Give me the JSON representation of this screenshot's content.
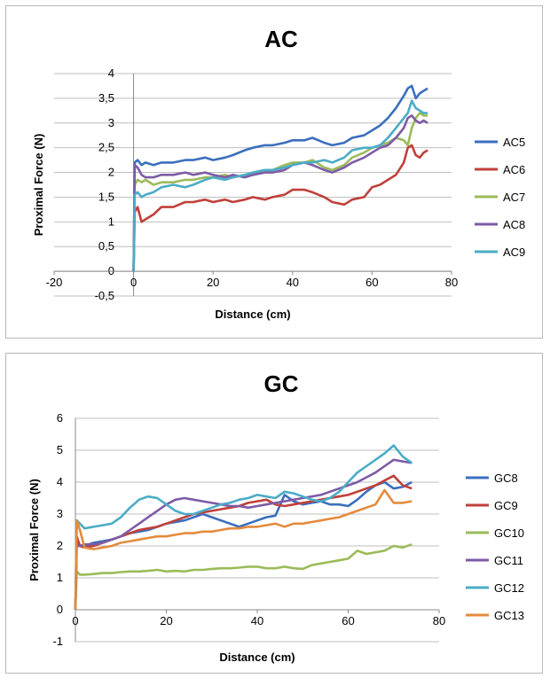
{
  "chart_data": [
    {
      "type": "line",
      "title": "AC",
      "xlabel": "Distance (cm)",
      "ylabel": "Proximal Force (N)",
      "xlim": [
        -20,
        80
      ],
      "ylim": [
        -0.5,
        4
      ],
      "xticks": [
        "-20",
        "0",
        "20",
        "40",
        "60",
        "80"
      ],
      "yticks": [
        "-0,5",
        "0",
        "0,5",
        "1",
        "1,5",
        "2",
        "2,5",
        "3",
        "3,5",
        "4"
      ],
      "grid": "horizontal",
      "legend": "right",
      "series": [
        {
          "name": "AC5",
          "color": "#3b6fbd",
          "x": [
            0,
            0.3,
            1,
            2,
            3,
            5,
            7,
            10,
            13,
            15,
            18,
            20,
            23,
            25,
            28,
            30,
            33,
            35,
            38,
            40,
            43,
            45,
            48,
            50,
            53,
            55,
            58,
            60,
            62,
            64,
            66,
            68,
            69,
            70,
            71,
            72,
            73,
            74
          ],
          "y": [
            0,
            2.2,
            2.25,
            2.15,
            2.2,
            2.15,
            2.2,
            2.2,
            2.25,
            2.25,
            2.3,
            2.25,
            2.3,
            2.35,
            2.45,
            2.5,
            2.55,
            2.55,
            2.6,
            2.65,
            2.65,
            2.7,
            2.6,
            2.55,
            2.6,
            2.7,
            2.75,
            2.85,
            2.95,
            3.1,
            3.3,
            3.55,
            3.7,
            3.75,
            3.5,
            3.6,
            3.65,
            3.7
          ]
        },
        {
          "name": "AC6",
          "color": "#c0403a",
          "x": [
            0,
            0.3,
            1,
            2,
            3,
            5,
            7,
            10,
            13,
            15,
            18,
            20,
            23,
            25,
            28,
            30,
            33,
            35,
            38,
            40,
            43,
            45,
            48,
            50,
            53,
            55,
            58,
            60,
            62,
            64,
            66,
            68,
            69,
            70,
            71,
            72,
            73,
            74
          ],
          "y": [
            0,
            1.2,
            1.3,
            1.0,
            1.05,
            1.15,
            1.3,
            1.3,
            1.4,
            1.4,
            1.45,
            1.4,
            1.45,
            1.4,
            1.45,
            1.5,
            1.45,
            1.5,
            1.55,
            1.65,
            1.65,
            1.6,
            1.5,
            1.4,
            1.35,
            1.45,
            1.5,
            1.7,
            1.75,
            1.85,
            1.95,
            2.2,
            2.5,
            2.55,
            2.35,
            2.3,
            2.4,
            2.45
          ]
        },
        {
          "name": "AC7",
          "color": "#9bbb59",
          "x": [
            0,
            0.3,
            1,
            2,
            3,
            5,
            7,
            10,
            13,
            15,
            18,
            20,
            23,
            25,
            28,
            30,
            33,
            35,
            38,
            40,
            43,
            45,
            48,
            50,
            53,
            55,
            58,
            60,
            62,
            64,
            66,
            68,
            69,
            70,
            71,
            72,
            73,
            74
          ],
          "y": [
            0,
            1.75,
            1.85,
            1.8,
            1.85,
            1.75,
            1.8,
            1.8,
            1.85,
            1.85,
            1.9,
            1.9,
            1.95,
            1.9,
            1.95,
            1.95,
            2.0,
            2.05,
            2.15,
            2.2,
            2.2,
            2.25,
            2.1,
            2.05,
            2.15,
            2.3,
            2.4,
            2.5,
            2.55,
            2.6,
            2.7,
            2.65,
            2.55,
            2.9,
            3.1,
            3.2,
            3.15,
            3.15
          ]
        },
        {
          "name": "AC8",
          "color": "#7d5ba6",
          "x": [
            0,
            0.3,
            1,
            2,
            3,
            5,
            7,
            10,
            13,
            15,
            18,
            20,
            23,
            25,
            28,
            30,
            33,
            35,
            38,
            40,
            43,
            45,
            48,
            50,
            53,
            55,
            58,
            60,
            62,
            64,
            66,
            68,
            69,
            70,
            71,
            72,
            73,
            74
          ],
          "y": [
            0,
            2.15,
            2.1,
            1.95,
            1.9,
            1.9,
            1.95,
            1.95,
            2.0,
            1.95,
            2.0,
            1.95,
            1.9,
            1.95,
            1.9,
            1.95,
            2.0,
            2.0,
            2.05,
            2.15,
            2.2,
            2.15,
            2.05,
            2.0,
            2.1,
            2.2,
            2.3,
            2.4,
            2.5,
            2.55,
            2.7,
            2.9,
            3.1,
            3.15,
            3.05,
            3.0,
            3.05,
            3.0
          ]
        },
        {
          "name": "AC9",
          "color": "#4bacc6",
          "x": [
            0,
            0.3,
            1,
            2,
            3,
            5,
            7,
            10,
            13,
            15,
            18,
            20,
            23,
            25,
            28,
            30,
            33,
            35,
            38,
            40,
            43,
            45,
            48,
            50,
            53,
            55,
            58,
            60,
            62,
            64,
            66,
            68,
            69,
            70,
            71,
            72,
            73,
            74
          ],
          "y": [
            0,
            1.55,
            1.6,
            1.5,
            1.55,
            1.6,
            1.7,
            1.75,
            1.7,
            1.75,
            1.85,
            1.9,
            1.85,
            1.9,
            1.95,
            2.0,
            2.05,
            2.05,
            2.1,
            2.15,
            2.2,
            2.2,
            2.25,
            2.2,
            2.3,
            2.45,
            2.5,
            2.5,
            2.55,
            2.7,
            2.9,
            3.1,
            3.2,
            3.45,
            3.3,
            3.25,
            3.2,
            3.2
          ]
        }
      ]
    },
    {
      "type": "line",
      "title": "GC",
      "xlabel": "Distance (cm)",
      "ylabel": "Proximal Force (N)",
      "xlim": [
        0,
        80
      ],
      "ylim": [
        -1,
        6
      ],
      "xticks": [
        "0",
        "20",
        "40",
        "60",
        "80"
      ],
      "yticks": [
        "-1",
        "0",
        "1",
        "2",
        "3",
        "4",
        "5",
        "6"
      ],
      "grid": "horizontal",
      "legend": "right",
      "series": [
        {
          "name": "GC8",
          "color": "#3b6fbd",
          "x": [
            0,
            0.3,
            1,
            2,
            4,
            6,
            8,
            10,
            12,
            14,
            16,
            18,
            20,
            22,
            24,
            26,
            28,
            30,
            32,
            34,
            36,
            38,
            40,
            42,
            44,
            46,
            48,
            50,
            52,
            54,
            56,
            58,
            60,
            62,
            64,
            66,
            68,
            70,
            72,
            74
          ],
          "y": [
            0,
            2.2,
            2.0,
            2.0,
            2.1,
            2.15,
            2.2,
            2.3,
            2.4,
            2.45,
            2.5,
            2.6,
            2.7,
            2.75,
            2.8,
            2.9,
            3.0,
            2.9,
            2.8,
            2.7,
            2.6,
            2.7,
            2.8,
            2.9,
            2.95,
            3.6,
            3.4,
            3.3,
            3.35,
            3.4,
            3.3,
            3.3,
            3.25,
            3.45,
            3.7,
            3.9,
            4.0,
            3.8,
            3.85,
            4.0
          ]
        },
        {
          "name": "GC9",
          "color": "#c0403a",
          "x": [
            0,
            0.3,
            1,
            2,
            4,
            6,
            8,
            10,
            12,
            14,
            16,
            18,
            20,
            22,
            24,
            26,
            28,
            30,
            32,
            34,
            36,
            38,
            40,
            42,
            44,
            46,
            48,
            50,
            52,
            54,
            56,
            58,
            60,
            62,
            64,
            66,
            68,
            70,
            72,
            74
          ],
          "y": [
            0,
            2.3,
            2.0,
            1.95,
            2.0,
            2.1,
            2.2,
            2.3,
            2.4,
            2.5,
            2.55,
            2.6,
            2.7,
            2.8,
            2.9,
            3.0,
            3.05,
            3.1,
            3.15,
            3.2,
            3.25,
            3.35,
            3.4,
            3.45,
            3.3,
            3.25,
            3.3,
            3.35,
            3.4,
            3.45,
            3.5,
            3.55,
            3.6,
            3.7,
            3.8,
            3.9,
            4.05,
            4.2,
            3.9,
            3.8
          ]
        },
        {
          "name": "GC10",
          "color": "#9bbb59",
          "x": [
            0,
            0.3,
            1,
            2,
            4,
            6,
            8,
            10,
            12,
            14,
            16,
            18,
            20,
            22,
            24,
            26,
            28,
            30,
            32,
            34,
            36,
            38,
            40,
            42,
            44,
            46,
            48,
            50,
            52,
            54,
            56,
            58,
            60,
            62,
            64,
            66,
            68,
            70,
            72,
            74
          ],
          "y": [
            0,
            1.2,
            1.1,
            1.1,
            1.12,
            1.15,
            1.15,
            1.18,
            1.2,
            1.2,
            1.22,
            1.25,
            1.2,
            1.22,
            1.2,
            1.25,
            1.25,
            1.28,
            1.3,
            1.3,
            1.32,
            1.35,
            1.35,
            1.3,
            1.3,
            1.35,
            1.3,
            1.28,
            1.4,
            1.45,
            1.5,
            1.55,
            1.6,
            1.85,
            1.75,
            1.8,
            1.85,
            2.0,
            1.95,
            2.05
          ]
        },
        {
          "name": "GC11",
          "color": "#7d5ba6",
          "x": [
            0,
            0.3,
            1,
            2,
            4,
            6,
            8,
            10,
            12,
            14,
            16,
            18,
            20,
            22,
            24,
            26,
            28,
            30,
            32,
            34,
            36,
            38,
            40,
            42,
            44,
            46,
            48,
            50,
            52,
            54,
            56,
            58,
            60,
            62,
            64,
            66,
            68,
            70,
            72,
            74
          ],
          "y": [
            0,
            2.0,
            2.0,
            2.05,
            2.05,
            2.1,
            2.2,
            2.3,
            2.5,
            2.7,
            2.9,
            3.1,
            3.3,
            3.45,
            3.5,
            3.45,
            3.4,
            3.35,
            3.3,
            3.25,
            3.25,
            3.2,
            3.25,
            3.3,
            3.35,
            3.4,
            3.45,
            3.5,
            3.55,
            3.6,
            3.7,
            3.8,
            3.9,
            4.0,
            4.15,
            4.3,
            4.5,
            4.7,
            4.65,
            4.6
          ]
        },
        {
          "name": "GC12",
          "color": "#4bacc6",
          "x": [
            0,
            0.3,
            1,
            2,
            4,
            6,
            8,
            10,
            12,
            14,
            16,
            18,
            20,
            22,
            24,
            26,
            28,
            30,
            32,
            34,
            36,
            38,
            40,
            42,
            44,
            46,
            48,
            50,
            52,
            54,
            56,
            58,
            60,
            62,
            64,
            66,
            68,
            70,
            72,
            74
          ],
          "y": [
            0,
            2.8,
            2.7,
            2.55,
            2.6,
            2.65,
            2.7,
            2.9,
            3.2,
            3.45,
            3.55,
            3.5,
            3.3,
            3.1,
            3.0,
            3.0,
            3.1,
            3.2,
            3.3,
            3.35,
            3.45,
            3.5,
            3.6,
            3.55,
            3.5,
            3.7,
            3.65,
            3.55,
            3.45,
            3.4,
            3.5,
            3.7,
            4.0,
            4.3,
            4.5,
            4.7,
            4.9,
            5.15,
            4.8,
            4.6
          ]
        },
        {
          "name": "GC13",
          "color": "#e38b3e",
          "x": [
            0,
            0.3,
            1,
            2,
            4,
            6,
            8,
            10,
            12,
            14,
            16,
            18,
            20,
            22,
            24,
            26,
            28,
            30,
            32,
            34,
            36,
            38,
            40,
            42,
            44,
            46,
            48,
            50,
            52,
            54,
            56,
            58,
            60,
            62,
            64,
            66,
            68,
            70,
            72,
            74
          ],
          "y": [
            0,
            2.8,
            2.5,
            1.95,
            1.9,
            1.95,
            2.0,
            2.1,
            2.15,
            2.2,
            2.25,
            2.3,
            2.3,
            2.35,
            2.4,
            2.4,
            2.45,
            2.45,
            2.5,
            2.55,
            2.55,
            2.6,
            2.6,
            2.65,
            2.7,
            2.6,
            2.7,
            2.7,
            2.75,
            2.8,
            2.85,
            2.9,
            3.0,
            3.1,
            3.2,
            3.3,
            3.75,
            3.35,
            3.35,
            3.4
          ]
        }
      ]
    }
  ]
}
